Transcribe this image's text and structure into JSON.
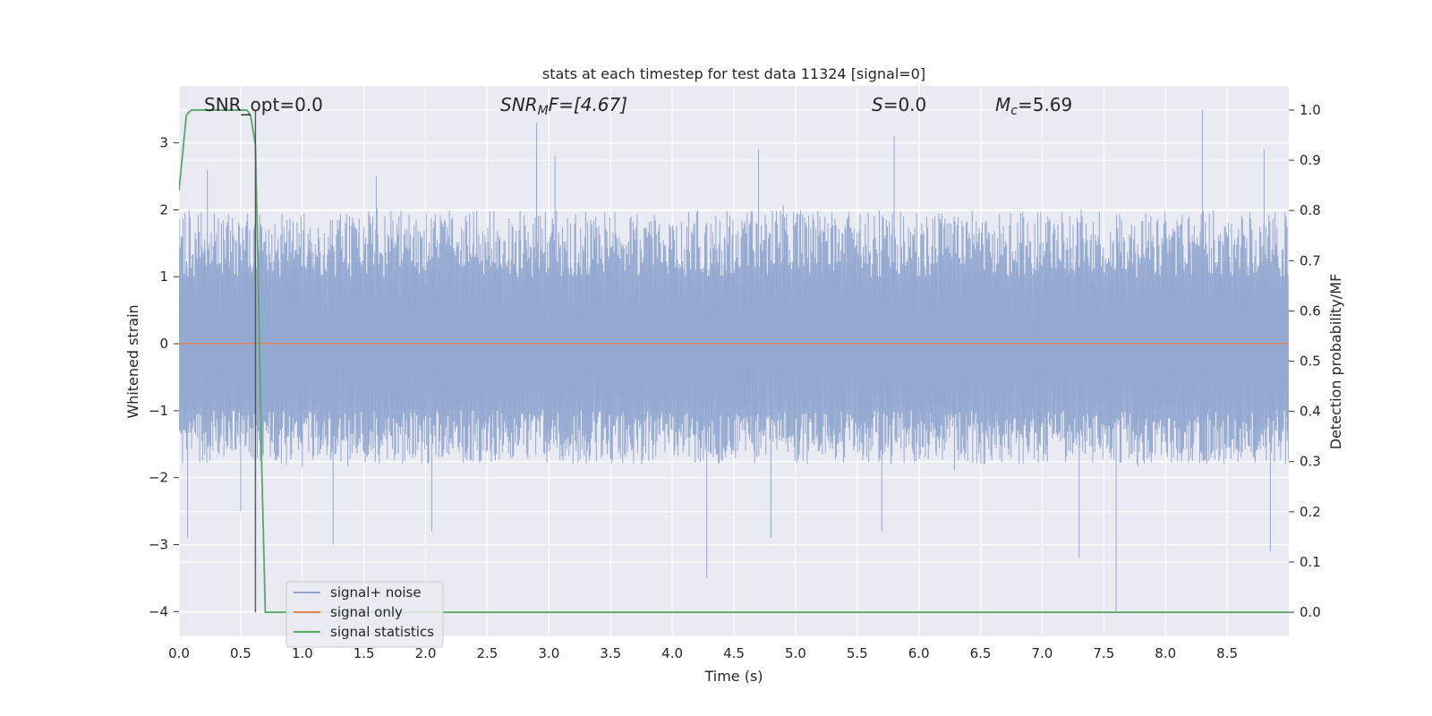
{
  "chart_data": {
    "type": "line",
    "title": "stats at each timestep for test data 11324 [signal=0]",
    "xlabel": "Time (s)",
    "ylabel": "Whitened strain",
    "y2label": "Detection probability/MF",
    "xlim": [
      0.0,
      9.0
    ],
    "ylim": [
      -4.37,
      3.85
    ],
    "y2lim": [
      -0.048,
      1.048
    ],
    "xticks": [
      "0.0",
      "0.5",
      "1.0",
      "1.5",
      "2.0",
      "2.5",
      "3.0",
      "3.5",
      "4.0",
      "4.5",
      "5.0",
      "5.5",
      "6.0",
      "6.5",
      "7.0",
      "7.5",
      "8.0",
      "8.5"
    ],
    "yticks": [
      "3",
      "2",
      "1",
      "0",
      "−1",
      "−2",
      "−3",
      "−4"
    ],
    "y2ticks": [
      "1.0",
      "0.9",
      "0.8",
      "0.7",
      "0.6",
      "0.5",
      "0.4",
      "0.3",
      "0.2",
      "0.1",
      "0.0"
    ],
    "grid": true,
    "legend_position": "lower-left",
    "annotations": {
      "snr_opt": "SNR_opt=0.0",
      "snr_mf_base": "SNR",
      "snr_mf_sub": "M",
      "snr_mf_tail": "F=[4.67]",
      "s_base": "S",
      "s_tail": "=0.0",
      "mc_base": "M",
      "mc_sub": "c",
      "mc_tail": "=5.69"
    },
    "marker_line_x": 0.62,
    "series": [
      {
        "name": "signal+ noise",
        "color": "#8fa5cf",
        "description": "whitened strain noise fluctuating mostly between -2 and 2",
        "typical_range": [
          -1.9,
          2.1
        ],
        "peaks": [
          [
            0.23,
            2.6
          ],
          [
            1.6,
            2.5
          ],
          [
            2.9,
            3.3
          ],
          [
            3.05,
            2.8
          ],
          [
            4.7,
            2.9
          ],
          [
            5.8,
            3.1
          ],
          [
            8.3,
            3.5
          ],
          [
            8.8,
            2.9
          ]
        ],
        "troughs": [
          [
            0.07,
            -2.9
          ],
          [
            0.5,
            -2.5
          ],
          [
            1.25,
            -3.0
          ],
          [
            2.05,
            -2.8
          ],
          [
            4.28,
            -3.5
          ],
          [
            4.8,
            -2.9
          ],
          [
            5.7,
            -2.8
          ],
          [
            7.3,
            -3.2
          ],
          [
            7.6,
            -4.0
          ],
          [
            8.85,
            -3.1
          ]
        ]
      },
      {
        "name": "signal only",
        "color": "#dd8452",
        "x": [
          0.0,
          9.0
        ],
        "values": [
          0.0,
          0.0
        ]
      },
      {
        "name": "signal statistics",
        "color": "#55a868",
        "axis": "right",
        "x": [
          0.0,
          0.06,
          0.1,
          0.15,
          0.25,
          0.35,
          0.45,
          0.55,
          0.58,
          0.62,
          0.64,
          0.67,
          0.7,
          9.0
        ],
        "values": [
          0.84,
          0.99,
          1.0,
          1.0,
          1.0,
          1.0,
          1.0,
          1.0,
          0.99,
          0.93,
          0.7,
          0.3,
          0.0,
          0.0
        ]
      }
    ]
  }
}
